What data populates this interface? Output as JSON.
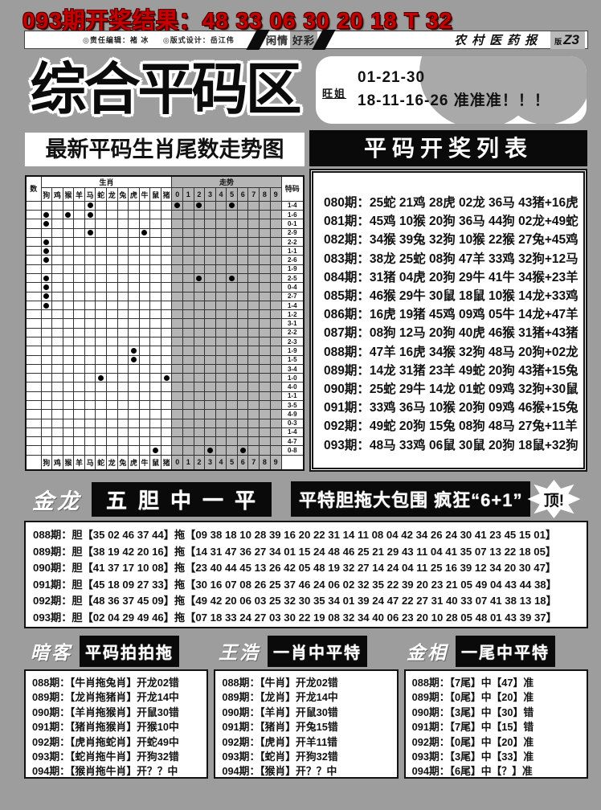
{
  "page": {
    "result_banner": "093期开奖结果：48 33 06 30 20 18 T 32",
    "masthead": {
      "editor": "◎责任编辑：褚 冰",
      "designer": "◎版式设计：岳江伟",
      "ribbon_left": "闲情",
      "ribbon_right": "好彩",
      "paper_name": "农村医药报",
      "edition_prefix": "版",
      "edition": "Z3"
    },
    "zone_title": "综合平码区",
    "tip_box": {
      "author": "旺姐",
      "line1": "01-21-30",
      "line2": "18-11-16-26 准准准！！！"
    }
  },
  "chart_data": {
    "type": "table",
    "title": "最新平码生肖尾数走势图",
    "corner_header": "数",
    "group_headers": [
      "生肖",
      "走势"
    ],
    "special_header": "特码",
    "zodiac_columns": [
      "狗",
      "鸡",
      "猴",
      "羊",
      "马",
      "蛇",
      "龙",
      "兔",
      "虎",
      "牛",
      "鼠",
      "猪"
    ],
    "trend_columns": [
      "0",
      "1",
      "2",
      "3",
      "4",
      "5",
      "6",
      "7",
      "8",
      "9"
    ],
    "rows": [
      {
        "special": "1-4",
        "zodiac_dots": [
          4
        ],
        "trend_dots": [
          0,
          2,
          5
        ]
      },
      {
        "special": "1-6",
        "zodiac_dots": [
          0,
          2,
          4
        ],
        "trend_dots": []
      },
      {
        "special": "0-1",
        "zodiac_dots": [
          0
        ],
        "trend_dots": []
      },
      {
        "special": "2-9",
        "zodiac_dots": [
          4,
          9
        ],
        "trend_dots": []
      },
      {
        "special": "2-2",
        "zodiac_dots": [
          0
        ],
        "trend_dots": []
      },
      {
        "special": "1-1",
        "zodiac_dots": [
          0
        ],
        "trend_dots": []
      },
      {
        "special": "2-6",
        "zodiac_dots": [
          0
        ],
        "trend_dots": []
      },
      {
        "special": "1-9",
        "zodiac_dots": [],
        "trend_dots": []
      },
      {
        "special": "2-5",
        "zodiac_dots": [
          0
        ],
        "trend_dots": [
          2,
          5
        ]
      },
      {
        "special": "0-4",
        "zodiac_dots": [
          0
        ],
        "trend_dots": []
      },
      {
        "special": "2-7",
        "zodiac_dots": [
          0
        ],
        "trend_dots": []
      },
      {
        "special": "1-4",
        "zodiac_dots": [
          0
        ],
        "trend_dots": []
      },
      {
        "special": "1-2",
        "zodiac_dots": [],
        "trend_dots": []
      },
      {
        "special": "3-1",
        "zodiac_dots": [],
        "trend_dots": []
      },
      {
        "special": "2-2",
        "zodiac_dots": [],
        "trend_dots": []
      },
      {
        "special": "2-3",
        "zodiac_dots": [],
        "trend_dots": []
      },
      {
        "special": "1-9",
        "zodiac_dots": [
          8
        ],
        "trend_dots": []
      },
      {
        "special": "1-5",
        "zodiac_dots": [
          8
        ],
        "trend_dots": []
      },
      {
        "special": "3-4",
        "zodiac_dots": [],
        "trend_dots": []
      },
      {
        "special": "1-0",
        "zodiac_dots": [
          5,
          11
        ],
        "trend_dots": []
      },
      {
        "special": "4-0",
        "zodiac_dots": [],
        "trend_dots": []
      },
      {
        "special": "1-1",
        "zodiac_dots": [],
        "trend_dots": []
      },
      {
        "special": "3-5",
        "zodiac_dots": [],
        "trend_dots": []
      },
      {
        "special": "4-9",
        "zodiac_dots": [],
        "trend_dots": []
      },
      {
        "special": "0-3",
        "zodiac_dots": [],
        "trend_dots": []
      },
      {
        "special": "1-4",
        "zodiac_dots": [],
        "trend_dots": []
      },
      {
        "special": "4-7",
        "zodiac_dots": [],
        "trend_dots": []
      },
      {
        "special": "0-8",
        "zodiac_dots": [
          10
        ],
        "trend_dots": [
          3,
          6
        ]
      }
    ]
  },
  "draw_list": {
    "title": "平码开奖列表",
    "rows": [
      "080期：25蛇 21鸡 28虎 02龙 36马 43猪+16虎",
      "081期：45鸡 10猴 20狗 36马 44狗 02龙+49蛇",
      "082期：34猴 39兔 32狗 10猴 22猴 27兔+45鸡",
      "083期：38龙 25蛇 08狗 47羊 33鸡 32狗+12马",
      "084期：31猪 04虎 20狗 29牛 41牛 34猴+23羊",
      "085期：46猴 29牛 30鼠 18鼠 10猴 14龙+33鸡",
      "086期：16虎 19猪 45鸡 09鸡 05牛 14龙+47羊",
      "087期：08狗 12马 20狗 40虎 46猴 31猪+43猪",
      "088期：47羊 16虎 34猴 32狗 48马 20狗+02龙",
      "089期：14龙 31猪 23羊 49蛇 20狗 43猪+15兔",
      "090期：25蛇 29牛 14龙 01蛇 09鸡 32狗+30鼠",
      "091期：33鸡 36马 10猴 20狗 09鸡 46猴+15兔",
      "092期：49蛇 20狗 15兔 08狗 48马 27兔+11羊",
      "093期：48马 33鸡 06鼠 30鼠 20狗 18鼠+32狗"
    ]
  },
  "promo": {
    "author": "金龙",
    "slogan1": "五胆中一平",
    "slogan2": "平特胆拖大包围 疯狂“6+1”",
    "burst": "顶!"
  },
  "dantuo": {
    "rows": [
      "088期：胆【35 02 46 37 44】拖【09 38 18 10 28 39 16 20 22 31 14 11 08 04 42 34 26 24 30 41 23 45 15 01】",
      "089期：胆【38 19 42 20 16】拖【14 31 47 36 27 34 01 15 24 48 46 25 21 29 43 11 04 41 35 07 13 22 18 05】",
      "090期：胆【41 37 17 10 08】拖【23 40 44 45 13 26 42 05 48 19 32 27 14 24 04 11 25 16 39 12 34 20 30 47】",
      "091期：胆【45 18 09 27 33】拖【30 16 07 08 26 25 37 46 24 06 02 32 35 22 39 20 23 21 05 49 04 43 44 38】",
      "092期：胆【48 36 37 45 09】拖【49 42 20 06 03 25 32 30 35 34 01 39 24 47 22 27 31 40 33 07 41 38 13 18】",
      "093期：胆【02 04 29 49 46】拖【07 18 33 24 27 03 30 22 19 08 32 34 40 06 23 20 10 28 05 48 01 43 39 37】"
    ]
  },
  "panels": [
    {
      "author": "暗客",
      "title": "平码拍拍拖",
      "rows": [
        "088期：【牛肖拖兔肖】开龙02错",
        "089期：【龙肖拖猪肖】开龙14中",
        "090期：【羊肖拖猴肖】开鼠30错",
        "091期：【猪肖拖猴肖】开猴10中",
        "092期：【虎肖拖蛇肖】开蛇49中",
        "093期：【蛇肖拖牛肖】开狗32错",
        "094期：【猴肖拖牛肖】开？？中"
      ]
    },
    {
      "author": "王浩",
      "title": "一肖中平特",
      "rows": [
        "088期：【牛肖】开龙02错",
        "089期：【龙肖】开龙14中",
        "090期：【羊肖】开鼠30错",
        "091期：【猪肖】开兔15错",
        "092期：【虎肖】开羊11错",
        "093期：【蛇肖】开狗32错",
        "094期：【猴肖】开？？中"
      ]
    },
    {
      "author": "金相",
      "title": "一尾中平特",
      "rows": [
        "088期：【7尾】中【47】准",
        "089期：【0尾】中【20】准",
        "090期：【3尾】中【30】错",
        "091期：【7尾】中【15】错",
        "092期：【0尾】中【20】准",
        "093期：【3尾】中【33】准",
        "094期：【6尾】中【？】准"
      ]
    }
  ]
}
